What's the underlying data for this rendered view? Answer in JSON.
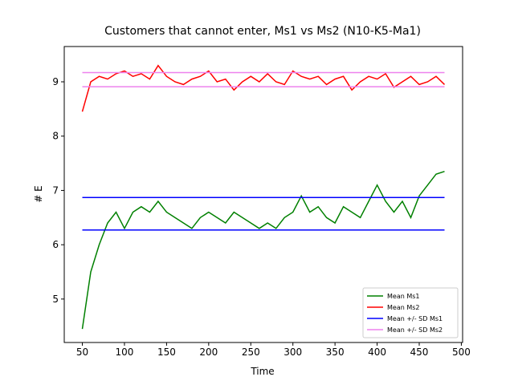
{
  "chart_data": {
    "type": "line",
    "title": "Customers that cannot enter, Ms1 vs Ms2 (N10-K5-Ma1)",
    "x_label": "Time",
    "y_label": "# E",
    "xlim": [
      28.5,
      501.5
    ],
    "ylim": [
      4.2,
      9.65
    ],
    "xticks": [
      50,
      100,
      150,
      200,
      250,
      300,
      350,
      400,
      450,
      500
    ],
    "yticks": [
      5,
      6,
      7,
      8,
      9
    ],
    "legend_position": "lower right",
    "x": [
      50,
      60,
      70,
      80,
      90,
      100,
      110,
      120,
      130,
      140,
      150,
      160,
      170,
      180,
      190,
      200,
      210,
      220,
      230,
      240,
      250,
      260,
      270,
      280,
      290,
      300,
      310,
      320,
      330,
      340,
      350,
      360,
      370,
      380,
      390,
      400,
      410,
      420,
      430,
      440,
      450,
      460,
      470,
      480
    ],
    "series": [
      {
        "name": "Mean Ms1",
        "color": "#008000",
        "values": [
          4.45,
          5.5,
          6.0,
          6.4,
          6.6,
          6.3,
          6.6,
          6.7,
          6.6,
          6.8,
          6.6,
          6.5,
          6.4,
          6.3,
          6.5,
          6.6,
          6.5,
          6.4,
          6.6,
          6.5,
          6.4,
          6.3,
          6.4,
          6.3,
          6.5,
          6.6,
          6.9,
          6.6,
          6.7,
          6.5,
          6.4,
          6.7,
          6.6,
          6.5,
          6.8,
          7.1,
          6.8,
          6.6,
          6.8,
          6.5,
          6.9,
          7.1,
          7.3,
          7.35
        ]
      },
      {
        "name": "Mean Ms2",
        "color": "#ff0000",
        "values": [
          8.45,
          9.0,
          9.1,
          9.05,
          9.15,
          9.2,
          9.1,
          9.15,
          9.05,
          9.3,
          9.1,
          9.0,
          8.95,
          9.05,
          9.1,
          9.2,
          9.0,
          9.05,
          8.85,
          9.0,
          9.1,
          9.0,
          9.15,
          9.0,
          8.95,
          9.2,
          9.1,
          9.05,
          9.1,
          8.95,
          9.05,
          9.1,
          8.85,
          9.0,
          9.1,
          9.05,
          9.15,
          8.9,
          9.0,
          9.1,
          8.95,
          9.0,
          9.1,
          8.95
        ]
      },
      {
        "name": "Mean +/- SD Ms1",
        "color": "#0000ff",
        "x": [
          50,
          480
        ],
        "upper": [
          6.87,
          6.87
        ],
        "lower": [
          6.27,
          6.27
        ]
      },
      {
        "name": "Mean +/- SD Ms2",
        "color": "#ee82ee",
        "x": [
          50,
          480
        ],
        "upper": [
          9.17,
          9.17
        ],
        "lower": [
          8.91,
          8.91
        ]
      }
    ]
  }
}
